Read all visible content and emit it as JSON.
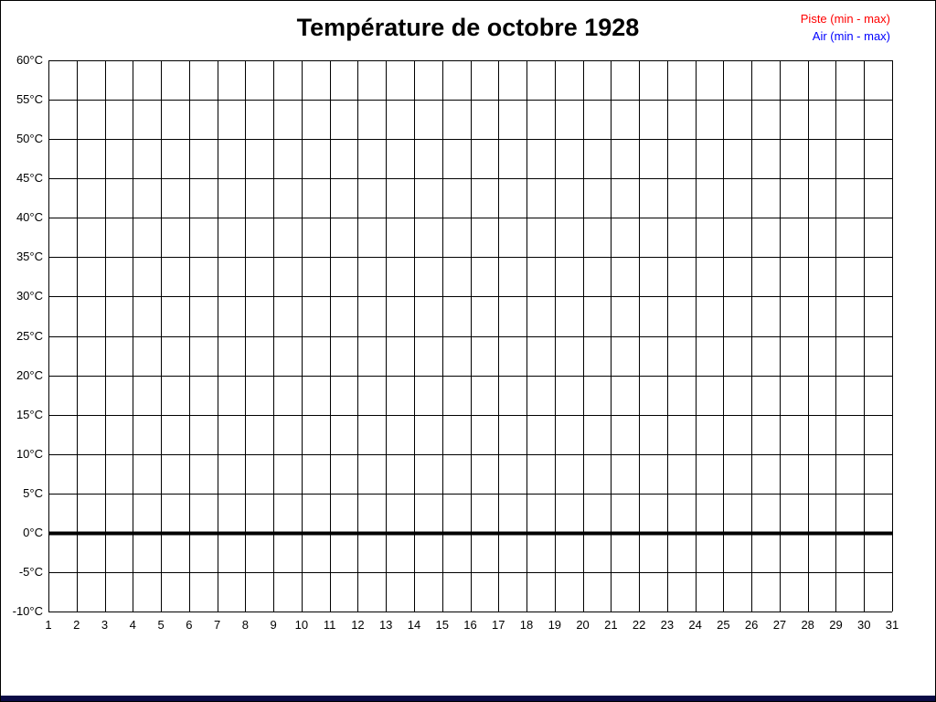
{
  "page": {
    "background": "#FFFFFF",
    "border_color": "#000000",
    "bottom_bar_color": "#0B0B46"
  },
  "legend": {
    "piste": "Piste (min - max)",
    "air": "Air (min - max)",
    "piste_color": "#FF0000",
    "air_color": "#0000FF"
  },
  "chart_data": {
    "type": "line",
    "title": "Température de octobre 1928",
    "xlabel": "",
    "ylabel": "",
    "xlim": [
      1,
      31
    ],
    "ylim": [
      -10,
      60
    ],
    "grid": true,
    "grid_color": "#000000",
    "zero_line": {
      "value": 0,
      "color": "#000000",
      "thickness": 4
    },
    "x_ticks": [
      1,
      2,
      3,
      4,
      5,
      6,
      7,
      8,
      9,
      10,
      11,
      12,
      13,
      14,
      15,
      16,
      17,
      18,
      19,
      20,
      21,
      22,
      23,
      24,
      25,
      26,
      27,
      28,
      29,
      30,
      31
    ],
    "x_tick_labels": [
      "1",
      "2",
      "3",
      "4",
      "5",
      "6",
      "7",
      "8",
      "9",
      "10",
      "11",
      "12",
      "13",
      "14",
      "15",
      "16",
      "17",
      "18",
      "19",
      "20",
      "21",
      "22",
      "23",
      "24",
      "25",
      "26",
      "27",
      "28",
      "29",
      "30",
      "31"
    ],
    "y_ticks": [
      60,
      55,
      50,
      45,
      40,
      35,
      30,
      25,
      20,
      15,
      10,
      5,
      0,
      -5,
      -10
    ],
    "y_tick_labels": [
      "60°C",
      "55°C",
      "50°C",
      "45°C",
      "40°C",
      "35°C",
      "30°C",
      "25°C",
      "20°C",
      "15°C",
      "10°C",
      "5°C",
      "0°C",
      "-5°C",
      "-10°C"
    ],
    "legend_position": "top-right",
    "series": [
      {
        "name": "Piste (min - max)",
        "color": "#FF0000",
        "values": []
      },
      {
        "name": "Air (min - max)",
        "color": "#0000FF",
        "values": []
      }
    ]
  }
}
